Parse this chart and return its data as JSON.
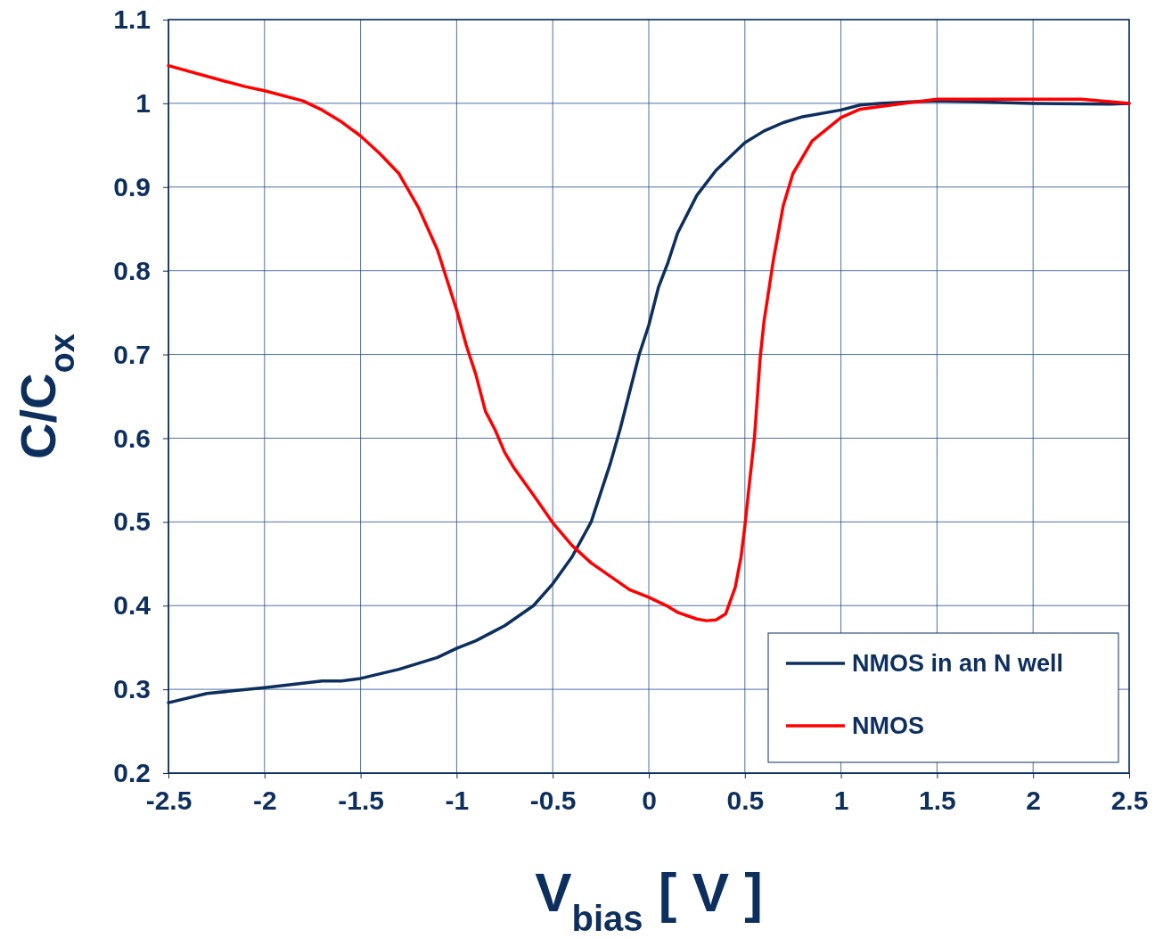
{
  "chart_data": {
    "type": "line",
    "xlabel": "V$_{bias}$ [ V ]",
    "ylabel": "C/C$_{ox}$",
    "xlim": [
      -2.5,
      2.5
    ],
    "xticks": [
      -2.5,
      -2,
      -1.5,
      -1,
      -0.5,
      0,
      0.5,
      1,
      1.5,
      2,
      2.5
    ],
    "ylim": [
      0.2,
      1.1
    ],
    "yticks": [
      0.2,
      0.3,
      0.4,
      0.5,
      0.6,
      0.7,
      0.8,
      0.9,
      1,
      1.1
    ],
    "grid": true,
    "legend": "bottom right",
    "marker": "none",
    "line_style": "solid",
    "series": [
      {
        "name": "NMOS in an N well",
        "color": "#0d2f5e",
        "x": [
          -2.5,
          -2.3,
          -2,
          -1.7,
          -1.6,
          -1.5,
          -1.3,
          -1.1,
          -1,
          -0.9,
          -0.8,
          -0.75,
          -0.6,
          -0.5,
          -0.4,
          -0.3,
          -0.2,
          -0.15,
          -0.1,
          -0.05,
          0,
          0.05,
          0.1,
          0.15,
          0.25,
          0.35,
          0.5,
          0.6,
          0.7,
          0.8,
          1,
          1.1,
          1.2,
          1.5,
          2,
          2.4,
          2.5
        ],
        "values": [
          0.284,
          0.295,
          0.302,
          0.31,
          0.31,
          0.313,
          0.324,
          0.338,
          0.349,
          0.358,
          0.37,
          0.376,
          0.4,
          0.426,
          0.458,
          0.5,
          0.57,
          0.61,
          0.655,
          0.7,
          0.735,
          0.78,
          0.81,
          0.845,
          0.89,
          0.92,
          0.953,
          0.967,
          0.977,
          0.984,
          0.992,
          0.998,
          1,
          1.003,
          1,
          0.999,
          1
        ]
      },
      {
        "name": "NMOS",
        "color": "#ff0000",
        "x": [
          -2.5,
          -2.2,
          -2.1,
          -2,
          -1.8,
          -1.7,
          -1.6,
          -1.5,
          -1.4,
          -1.3,
          -1.2,
          -1.1,
          -1,
          -0.95,
          -0.9,
          -0.85,
          -0.8,
          -0.75,
          -0.7,
          -0.6,
          -0.5,
          -0.4,
          -0.3,
          -0.2,
          -0.1,
          0,
          0.1,
          0.15,
          0.25,
          0.3,
          0.35,
          0.4,
          0.45,
          0.48,
          0.5,
          0.52,
          0.55,
          0.58,
          0.6,
          0.65,
          0.7,
          0.75,
          0.85,
          1,
          1.1,
          1.3,
          1.5,
          2,
          2.25,
          2.4,
          2.5
        ],
        "values": [
          1.045,
          1.026,
          1.02,
          1.015,
          1.003,
          0.992,
          0.978,
          0.961,
          0.94,
          0.916,
          0.876,
          0.825,
          0.753,
          0.711,
          0.676,
          0.632,
          0.61,
          0.583,
          0.564,
          0.532,
          0.499,
          0.472,
          0.451,
          0.435,
          0.419,
          0.41,
          0.399,
          0.392,
          0.384,
          0.382,
          0.383,
          0.39,
          0.422,
          0.458,
          0.495,
          0.538,
          0.601,
          0.697,
          0.74,
          0.815,
          0.878,
          0.916,
          0.955,
          0.983,
          0.993,
          0.999,
          1.005,
          1.005,
          1.005,
          1.002,
          1
        ]
      }
    ]
  }
}
